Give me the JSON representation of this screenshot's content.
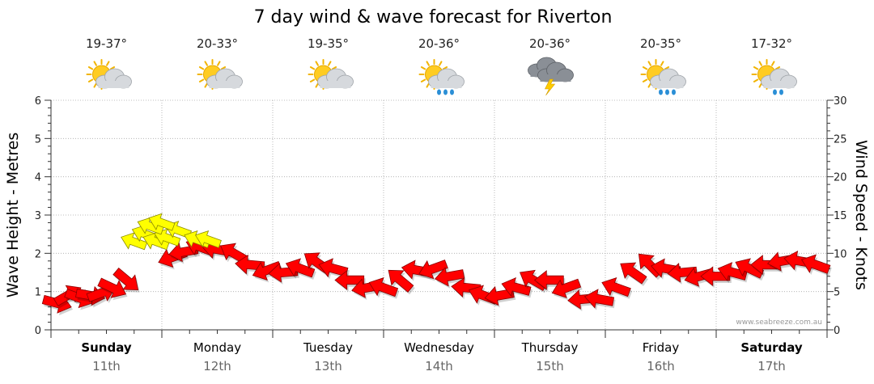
{
  "chart_data": {
    "type": "line",
    "title": "7 day wind & wave forecast for Riverton",
    "ylabel_left": "Wave Height - Metres",
    "ylabel_right": "Wind Speed - Knots",
    "ylim_left": [
      0,
      6
    ],
    "ylim_right": [
      0,
      30
    ],
    "yticks_left": [
      "0",
      "1",
      "2",
      "3",
      "4",
      "5",
      "6"
    ],
    "yticks_right": [
      "0",
      "5",
      "10",
      "15",
      "20",
      "25",
      "30"
    ],
    "grid": true,
    "credit": "www.seabreeze.com.au",
    "days": [
      {
        "day": "Sunday",
        "date": "11th",
        "bold": true,
        "temp": "19-37°",
        "icon": "sun-cloud-icon"
      },
      {
        "day": "Monday",
        "date": "12th",
        "bold": false,
        "temp": "20-33°",
        "icon": "sun-cloud-icon"
      },
      {
        "day": "Tuesday",
        "date": "13th",
        "bold": false,
        "temp": "19-35°",
        "icon": "sun-cloud-icon"
      },
      {
        "day": "Wednesday",
        "date": "14th",
        "bold": false,
        "temp": "20-36°",
        "icon": "sun-cloud-rain-icon"
      },
      {
        "day": "Thursday",
        "date": "15th",
        "bold": false,
        "temp": "20-36°",
        "icon": "storm-cloud-icon"
      },
      {
        "day": "Friday",
        "date": "16th",
        "bold": false,
        "temp": "20-35°",
        "icon": "sun-cloud-rain-icon"
      },
      {
        "day": "Saturday",
        "date": "17th",
        "bold": true,
        "temp": "17-32°",
        "icon": "sun-cloud-showers-icon"
      }
    ],
    "series": [
      {
        "name": "Wind Speed",
        "units": "knots",
        "x_days": [
          0.0,
          0.25,
          0.5,
          0.75,
          1.0,
          1.25,
          1.5,
          1.75,
          2.0,
          2.25,
          2.5,
          2.75,
          3.0,
          3.25,
          3.5,
          3.75,
          4.0,
          4.25,
          4.5,
          4.75,
          5.0,
          5.25,
          5.5,
          5.75,
          6.0,
          6.25,
          6.5,
          6.75,
          7.0
        ],
        "values": [
          3.5,
          4.5,
          4.2,
          6.5,
          9.5,
          10.5,
          10.5,
          8.5,
          7.5,
          8.5,
          9,
          6.5,
          5.5,
          6.5,
          8,
          5.5,
          4,
          6,
          6.5,
          4,
          4.5,
          8,
          8,
          7,
          7,
          7.5,
          8.5,
          9,
          8.5
        ],
        "arrows": [
          {
            "x": 0.05,
            "v": 3.5
          },
          {
            "x": 0.15,
            "v": 4.5
          },
          {
            "x": 0.25,
            "v": 4.2
          },
          {
            "x": 0.35,
            "v": 4.5
          },
          {
            "x": 0.45,
            "v": 4.8
          },
          {
            "x": 0.55,
            "v": 5.5
          },
          {
            "x": 0.68,
            "v": 6.5
          },
          {
            "x": 1.1,
            "v": 9.5
          },
          {
            "x": 1.2,
            "v": 10.2
          },
          {
            "x": 1.35,
            "v": 10.8
          },
          {
            "x": 1.5,
            "v": 10.5
          },
          {
            "x": 1.65,
            "v": 10
          },
          {
            "x": 1.8,
            "v": 8.5
          },
          {
            "x": 1.95,
            "v": 7.8
          },
          {
            "x": 2.1,
            "v": 7.5
          },
          {
            "x": 2.25,
            "v": 8
          },
          {
            "x": 2.4,
            "v": 8.8
          },
          {
            "x": 2.55,
            "v": 8
          },
          {
            "x": 2.7,
            "v": 6.5
          },
          {
            "x": 2.85,
            "v": 5.5
          },
          {
            "x": 3.0,
            "v": 5.5
          },
          {
            "x": 3.15,
            "v": 6.5
          },
          {
            "x": 3.3,
            "v": 7.8
          },
          {
            "x": 3.45,
            "v": 8
          },
          {
            "x": 3.6,
            "v": 7
          },
          {
            "x": 3.75,
            "v": 5.5
          },
          {
            "x": 3.9,
            "v": 4.5
          },
          {
            "x": 4.05,
            "v": 4.5
          },
          {
            "x": 4.2,
            "v": 5.5
          },
          {
            "x": 4.35,
            "v": 6.5
          },
          {
            "x": 4.5,
            "v": 6.5
          },
          {
            "x": 4.65,
            "v": 5.5
          },
          {
            "x": 4.8,
            "v": 4
          },
          {
            "x": 4.95,
            "v": 4
          },
          {
            "x": 5.1,
            "v": 5.5
          },
          {
            "x": 5.25,
            "v": 7.5
          },
          {
            "x": 5.4,
            "v": 8.5
          },
          {
            "x": 5.55,
            "v": 8
          },
          {
            "x": 5.7,
            "v": 7.5
          },
          {
            "x": 5.85,
            "v": 7
          },
          {
            "x": 6.0,
            "v": 7
          },
          {
            "x": 6.15,
            "v": 7.5
          },
          {
            "x": 6.3,
            "v": 8
          },
          {
            "x": 6.45,
            "v": 8.5
          },
          {
            "x": 6.6,
            "v": 9
          },
          {
            "x": 6.75,
            "v": 9
          },
          {
            "x": 6.9,
            "v": 8.5
          }
        ],
        "color": "#ff0000"
      },
      {
        "name": "Wave Height",
        "units": "metres",
        "highlight_arrows": [
          {
            "x": 0.75,
            "v": 2.3
          },
          {
            "x": 0.85,
            "v": 2.5
          },
          {
            "x": 0.95,
            "v": 2.3
          },
          {
            "x": 1.05,
            "v": 2.4
          },
          {
            "x": 1.15,
            "v": 2.6
          },
          {
            "x": 0.9,
            "v": 2.7
          },
          {
            "x": 1.0,
            "v": 2.8
          },
          {
            "x": 1.32,
            "v": 2.35
          },
          {
            "x": 1.42,
            "v": 2.35
          }
        ],
        "color": "#ffff00"
      }
    ]
  }
}
